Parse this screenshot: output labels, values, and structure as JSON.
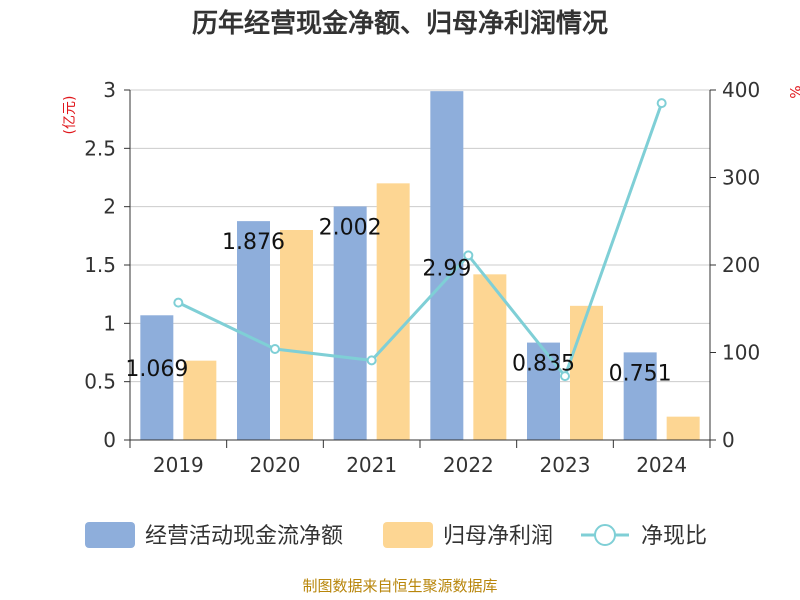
{
  "chart_data": {
    "type": "bar",
    "title": "历年经营现金净额、归母净利润情况",
    "categories": [
      "2019",
      "2020",
      "2021",
      "2022",
      "2023",
      "2024"
    ],
    "series": [
      {
        "name": "经营活动现金流净额",
        "kind": "bar",
        "axis": "left",
        "color": "#8eaedb",
        "values": [
          1.069,
          1.876,
          2.002,
          2.99,
          0.835,
          0.751
        ],
        "labels": [
          "1.069",
          "1.876",
          "2.002",
          "2.99",
          "0.835",
          "0.751"
        ]
      },
      {
        "name": "归母净利润",
        "kind": "bar",
        "axis": "left",
        "color": "#fdd693",
        "values": [
          0.68,
          1.8,
          2.2,
          1.42,
          1.15,
          0.2
        ]
      },
      {
        "name": "净现比",
        "kind": "line",
        "axis": "right",
        "color": "#7fcfd6",
        "values": [
          157,
          104,
          91,
          211,
          73,
          385
        ]
      }
    ],
    "y_left": {
      "unit": "(亿元)",
      "min": 0,
      "max": 3,
      "ticks": [
        "0",
        "0.5",
        "1",
        "1.5",
        "2",
        "2.5",
        "3"
      ]
    },
    "y_right": {
      "unit": "%",
      "min": 0,
      "max": 400,
      "ticks": [
        "0",
        "100",
        "200",
        "300",
        "400"
      ]
    },
    "grid": true,
    "legend_position": "bottom"
  },
  "source_text": "制图数据来自恒生聚源数据库"
}
